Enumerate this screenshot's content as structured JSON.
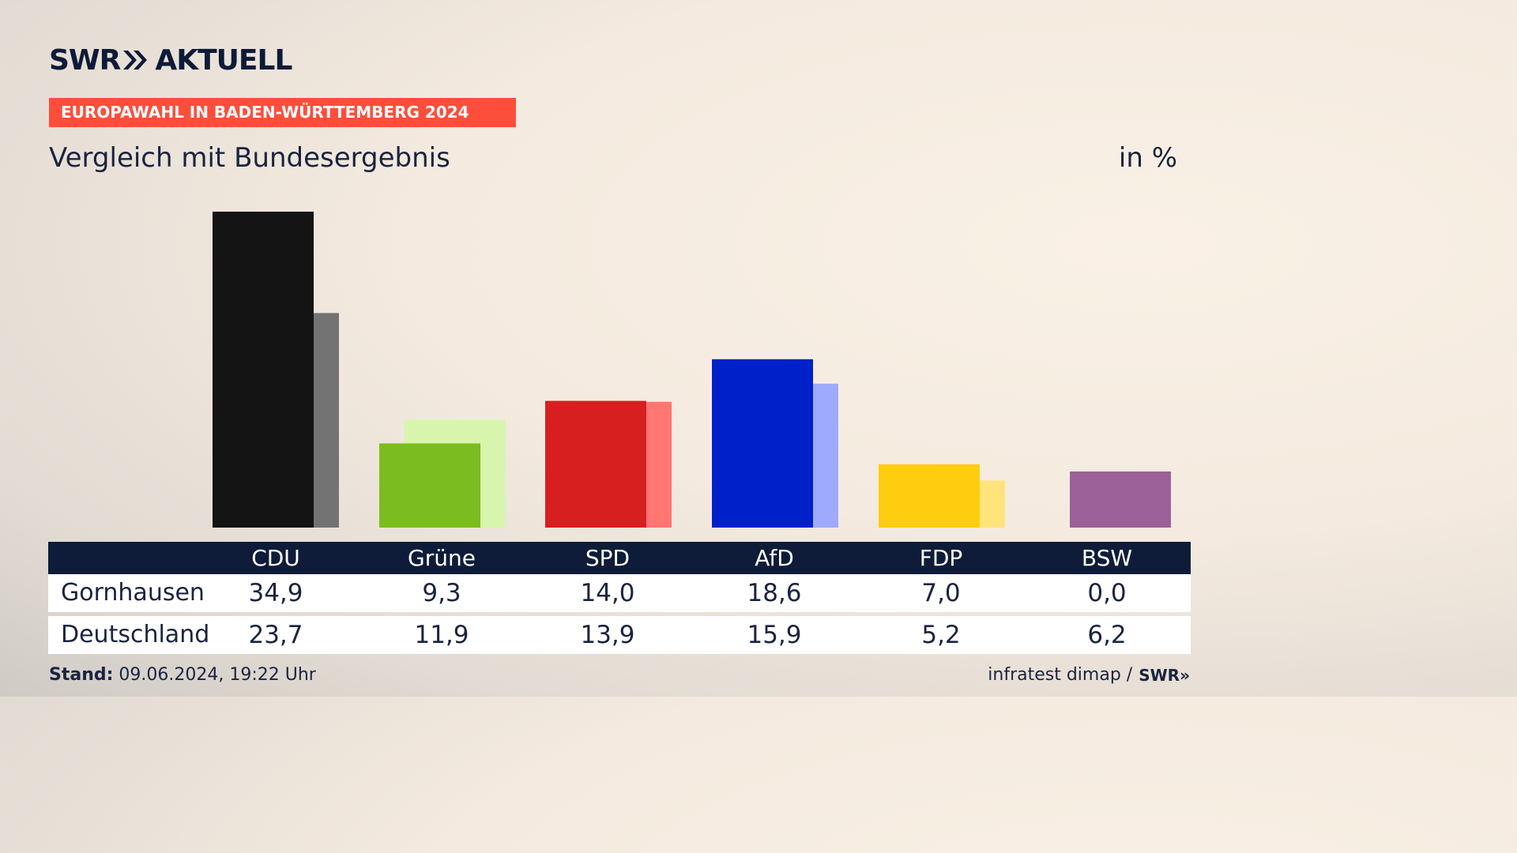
{
  "header": {
    "brand": "SWR",
    "brand_suffix": "AKTUELL",
    "kicker": "EUROPAWAHL IN BADEN-WÜRTTEMBERG 2024",
    "subtitle": "Vergleich mit Bundesergebnis",
    "unit": "in %"
  },
  "colors": {
    "kicker_bg": "#fd4e3b",
    "table_header_bg": "#0e1c3a",
    "CDU": [
      "#141414",
      "#737373"
    ],
    "Grüne": [
      "#7bbd1e",
      "#d7f5ad"
    ],
    "SPD": [
      "#d81f1f",
      "#ff7673"
    ],
    "AfD": [
      "#0021c9",
      "#9eaafd"
    ],
    "FDP": [
      "#ffcd0f",
      "#ffe47c"
    ],
    "BSW": [
      "#9c6199",
      "#9c6199"
    ]
  },
  "chart_data": {
    "type": "bar",
    "categories": [
      "CDU",
      "Grüne",
      "SPD",
      "AfD",
      "FDP",
      "BSW"
    ],
    "series": [
      {
        "name": "Gornhausen",
        "values": [
          34.9,
          9.3,
          14.0,
          18.6,
          7.0,
          0.0
        ]
      },
      {
        "name": "Deutschland",
        "values": [
          23.7,
          11.9,
          13.9,
          15.9,
          5.2,
          6.2
        ]
      }
    ],
    "ylim": [
      0,
      34.9
    ],
    "grid": false,
    "title": "Vergleich mit Bundesergebnis"
  },
  "table": {
    "columns": [
      "CDU",
      "Grüne",
      "SPD",
      "AfD",
      "FDP",
      "BSW"
    ],
    "rows": [
      {
        "label": "Gornhausen",
        "values": [
          "34,9",
          "9,3",
          "14,0",
          "18,6",
          "7,0",
          "0,0"
        ]
      },
      {
        "label": "Deutschland",
        "values": [
          "23,7",
          "11,9",
          "13,9",
          "15,9",
          "5,2",
          "6,2"
        ]
      }
    ]
  },
  "footer": {
    "stand_label": "Stand:",
    "stand_value": "09.06.2024, 19:22 Uhr",
    "source": "infratest dimap /",
    "source_brand": "SWR"
  }
}
